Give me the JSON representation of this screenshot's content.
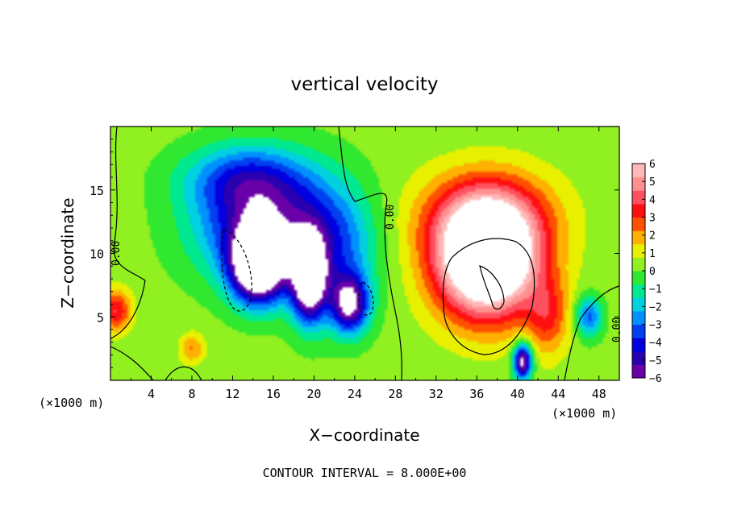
{
  "chart_data": {
    "type": "heatmap",
    "title": "vertical velocity",
    "xlabel": "X−coordinate",
    "ylabel": "Z−coordinate",
    "x_unit_left": "(×1000 m)",
    "x_unit_right": "(×1000 m)",
    "footer": "CONTOUR INTERVAL = 8.000E+00",
    "xlim": [
      0,
      50
    ],
    "ylim": [
      0,
      20
    ],
    "x_ticks": [
      "4",
      "8",
      "12",
      "16",
      "20",
      "24",
      "28",
      "32",
      "36",
      "40",
      "44",
      "48"
    ],
    "y_ticks": [
      "5",
      "10",
      "15"
    ],
    "colorbar": {
      "range": [
        -6,
        6
      ],
      "tick_labels": [
        "6",
        "5",
        "4",
        "3",
        "2",
        "1",
        "0",
        "−1",
        "−2",
        "−3",
        "−4",
        "−5",
        "−6"
      ],
      "colors": [
        "#6a00a8",
        "#2a00b0",
        "#0000e0",
        "#0040f0",
        "#0090ff",
        "#00d0e0",
        "#00e890",
        "#30e830",
        "#90f020",
        "#e8f000",
        "#ffb000",
        "#ff5000",
        "#ff1010",
        "#ff5060",
        "#ff9090",
        "#ffb8b8"
      ]
    },
    "contour_labels": [
      "0.00",
      "0.00",
      "0.00"
    ],
    "field": {
      "background": 0.3,
      "cells": [
        {
          "x": 15,
          "z": 12.5,
          "amp": -5.5,
          "sx": 6.5,
          "sz": 4.5
        },
        {
          "x": 13,
          "z": 16,
          "amp": -2.5,
          "sx": 6,
          "sz": 2.5
        },
        {
          "x": 14.5,
          "z": 9,
          "amp": -9,
          "sx": 2.6,
          "sz": 2.8
        },
        {
          "x": 19.5,
          "z": 8,
          "amp": -8,
          "sx": 1.6,
          "sz": 3.2
        },
        {
          "x": 23.5,
          "z": 6,
          "amp": -6,
          "sx": 1.8,
          "sz": 2.2
        },
        {
          "x": 22,
          "z": 10,
          "amp": -3,
          "sx": 4,
          "sz": 5
        },
        {
          "x": 37,
          "z": 9.5,
          "amp": 10,
          "sx": 5,
          "sz": 4.5
        },
        {
          "x": 37,
          "z": 13,
          "amp": 3,
          "sx": 6.5,
          "sz": 3.5
        },
        {
          "x": 43,
          "z": 5,
          "amp": 2.5,
          "sx": 2,
          "sz": 3
        },
        {
          "x": 40.5,
          "z": 1.5,
          "amp": -7,
          "sx": 0.9,
          "sz": 1.4
        },
        {
          "x": 47,
          "z": 5,
          "amp": -3.5,
          "sx": 1.3,
          "sz": 1.6
        },
        {
          "x": 0.5,
          "z": 5.5,
          "amp": 3.5,
          "sx": 1.5,
          "sz": 1.6
        },
        {
          "x": 8,
          "z": 2.5,
          "amp": 2,
          "sx": 1.2,
          "sz": 1.2
        }
      ]
    }
  }
}
